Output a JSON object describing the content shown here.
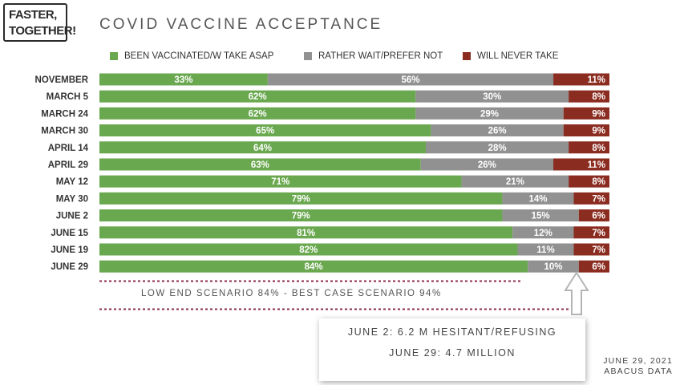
{
  "logo": {
    "line1": "FASTER,",
    "line2": "TOGETHER!"
  },
  "colors": {
    "green": "#6aa84f",
    "gray": "#919191",
    "red": "#8b2c20",
    "dotted": "#8b2c4a"
  },
  "chart_data": {
    "type": "bar",
    "orientation": "horizontal",
    "stacked": true,
    "title": "COVID VACCINE ACCEPTANCE",
    "categories": [
      "NOVEMBER",
      "MARCH 5",
      "MARCH 24",
      "MARCH 30",
      "APRIL 14",
      "APRIL 29",
      "MAY 12",
      "MAY 30",
      "JUNE 2",
      "JUNE 15",
      "JUNE 19",
      "JUNE 29"
    ],
    "series": [
      {
        "name": "BEEN VACCINATED/W TAKE ASAP",
        "values": [
          33,
          62,
          62,
          65,
          64,
          63,
          71,
          79,
          79,
          81,
          82,
          84
        ]
      },
      {
        "name": "RATHER WAIT/PREFER NOT",
        "values": [
          56,
          30,
          29,
          26,
          28,
          26,
          21,
          14,
          15,
          12,
          11,
          10
        ]
      },
      {
        "name": "WILL NEVER TAKE",
        "values": [
          11,
          8,
          9,
          9,
          8,
          11,
          8,
          7,
          6,
          7,
          7,
          6
        ]
      }
    ],
    "xlim": [
      0,
      100
    ],
    "value_suffix": "%"
  },
  "annotations": {
    "scenario": "LOW END SCENARIO 84% - BEST CASE SCENARIO 94%",
    "callout_line1": "JUNE 2: 6.2 M HESITANT/REFUSING",
    "callout_line2": "JUNE 29: 4.7 MILLION"
  },
  "source": {
    "date": "JUNE 29, 2021",
    "org": "ABACUS DATA"
  }
}
